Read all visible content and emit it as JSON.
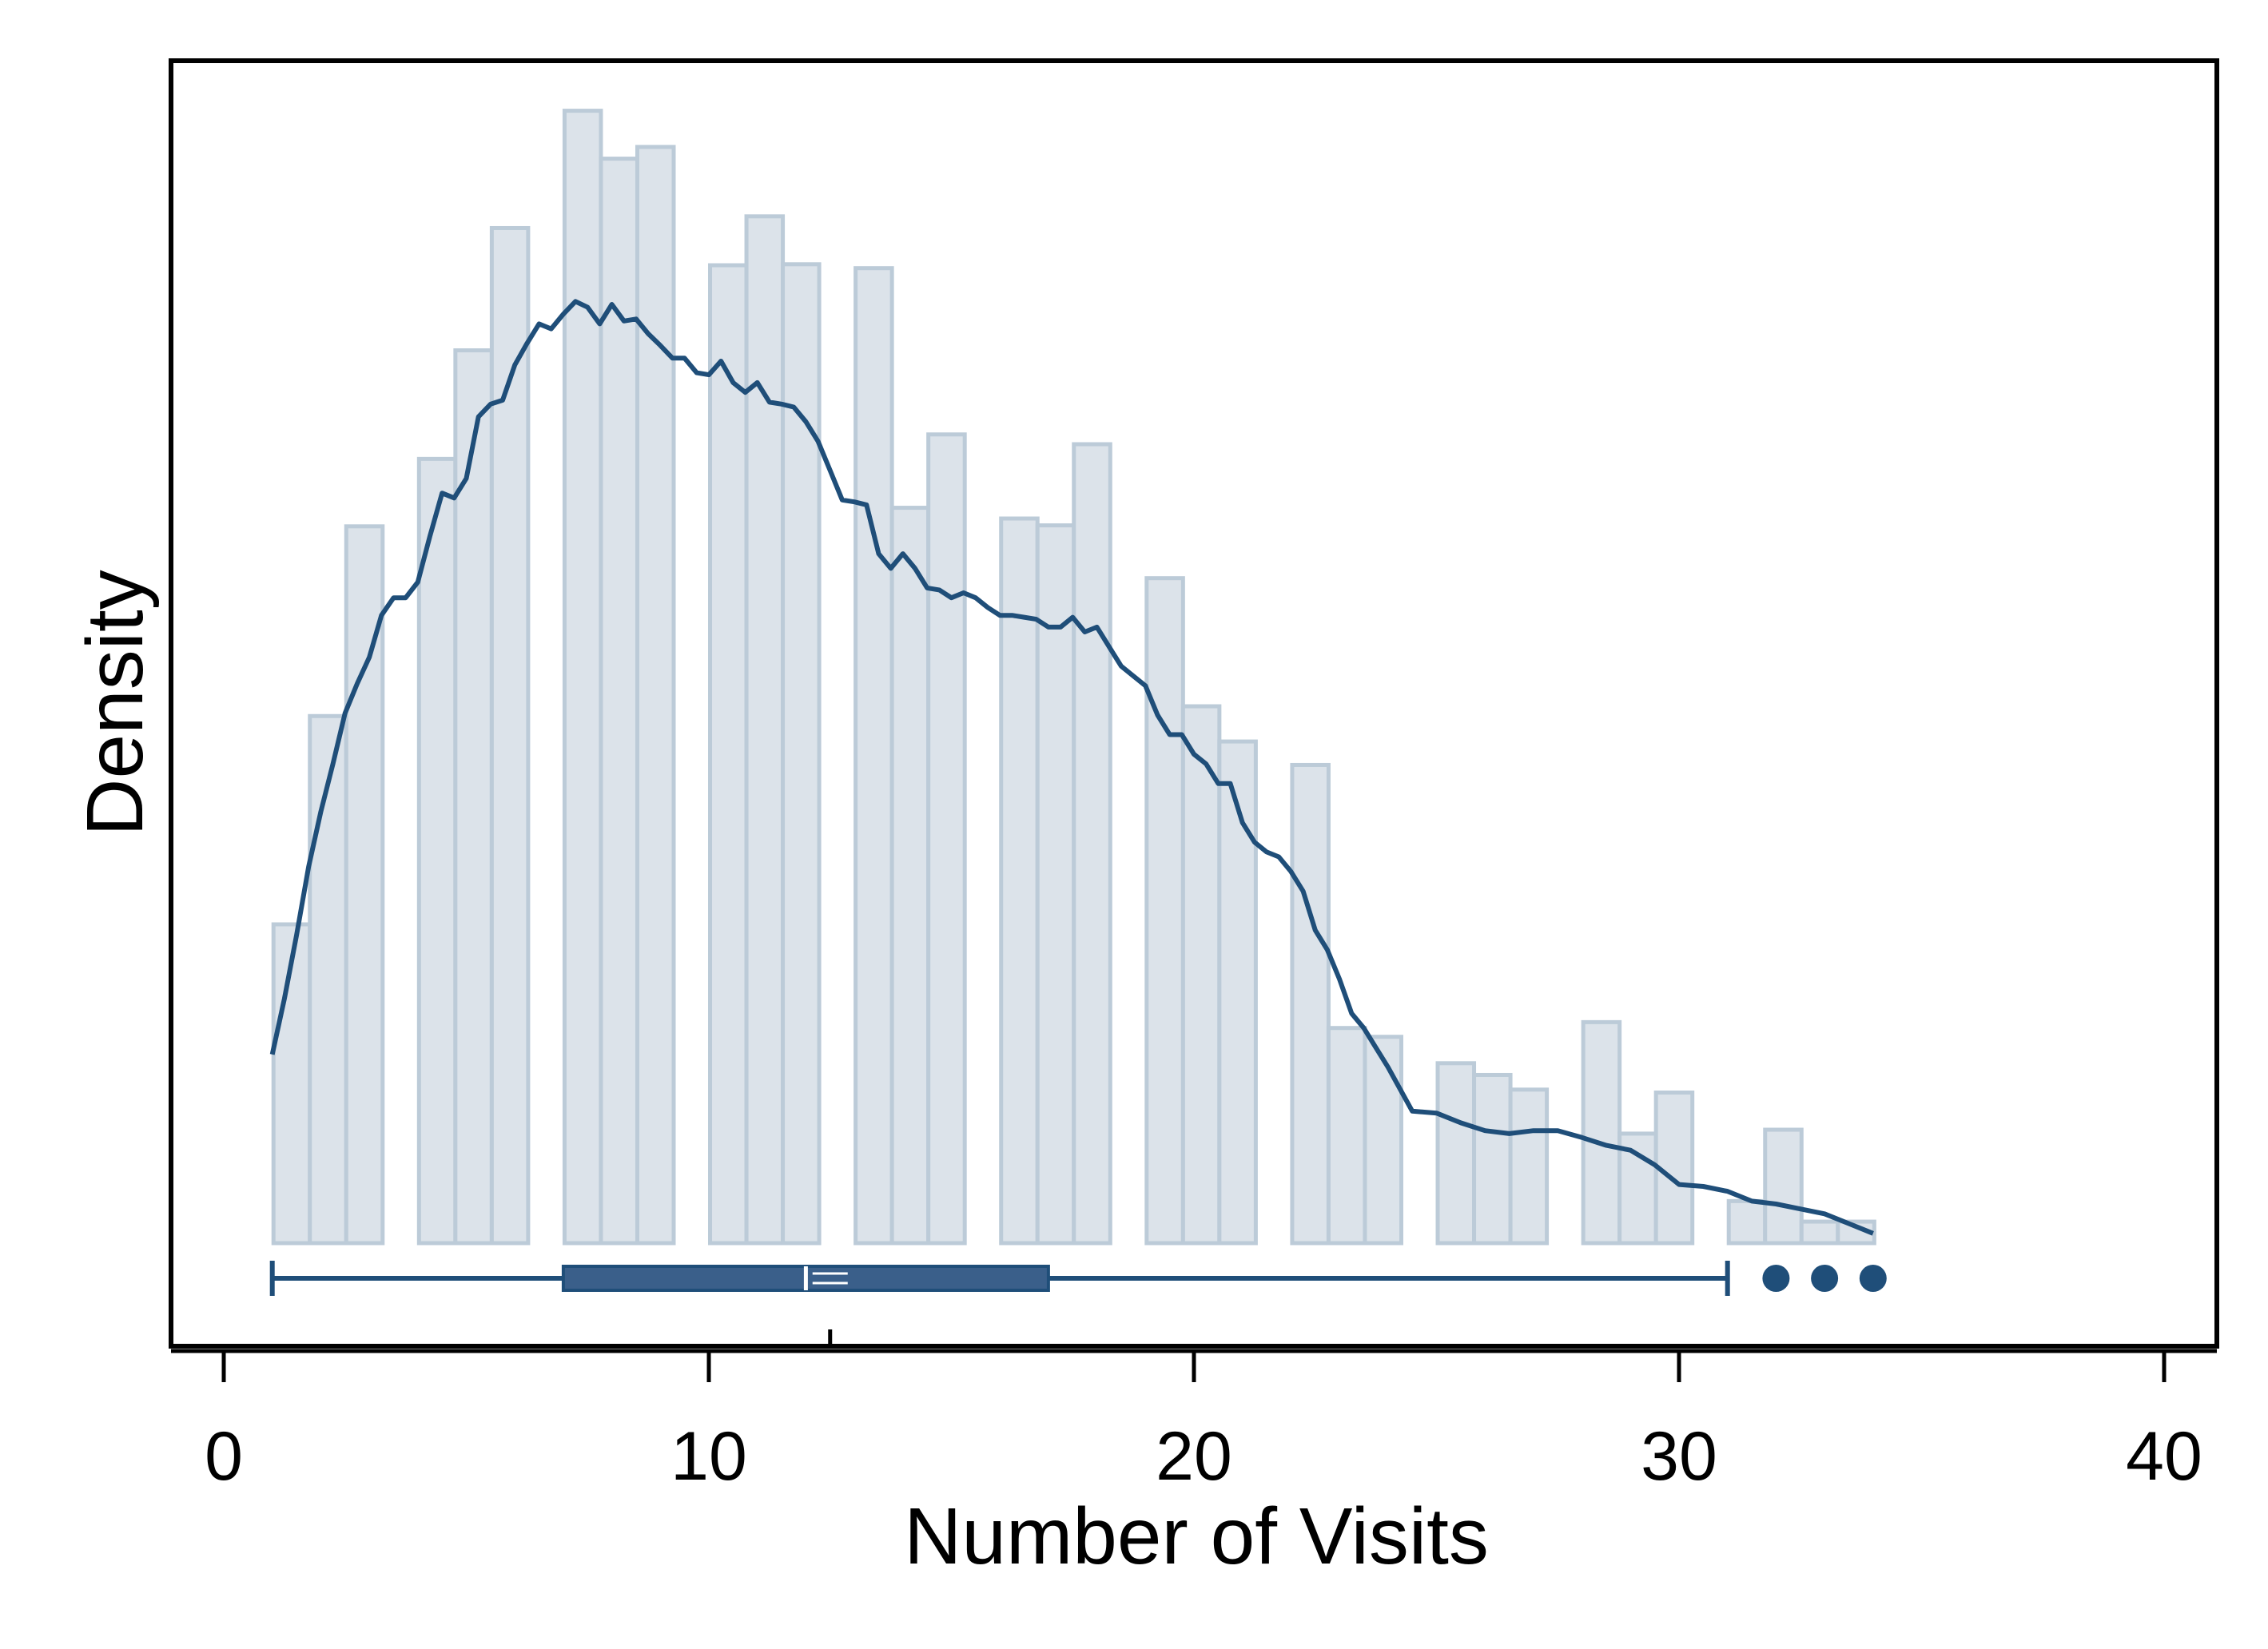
{
  "chart_data": {
    "type": "histogram",
    "xlabel": "Number of Visits",
    "ylabel": "Density",
    "xlim": [
      -1,
      41.2
    ],
    "xticks": [
      0,
      10,
      20,
      30,
      40
    ],
    "x_tick_labels": [
      "0",
      "10",
      "20",
      "30",
      "40"
    ],
    "y_ticks_shown": false,
    "grid": false,
    "colors": {
      "bar_fill": "#dce3ea",
      "bar_edge": "#bccbd8",
      "accent": "#1f4e79",
      "box_fill": "#3a5f8a"
    },
    "histogram": {
      "bin_width": 0.75,
      "bars": [
        {
          "x": 1.4,
          "density": 0.0326
        },
        {
          "x": 2.15,
          "density": 0.0539
        },
        {
          "x": 2.9,
          "density": 0.0733
        },
        {
          "x": 4.4,
          "density": 0.0802
        },
        {
          "x": 5.15,
          "density": 0.0913
        },
        {
          "x": 5.9,
          "density": 0.1038
        },
        {
          "x": 7.4,
          "density": 0.1158
        },
        {
          "x": 8.15,
          "density": 0.1109
        },
        {
          "x": 8.9,
          "density": 0.1121
        },
        {
          "x": 10.4,
          "density": 0.1
        },
        {
          "x": 11.15,
          "density": 0.105
        },
        {
          "x": 11.9,
          "density": 0.1001
        },
        {
          "x": 13.4,
          "density": 0.0997
        },
        {
          "x": 14.15,
          "density": 0.0752
        },
        {
          "x": 14.9,
          "density": 0.0827
        },
        {
          "x": 16.4,
          "density": 0.0741
        },
        {
          "x": 17.15,
          "density": 0.0734
        },
        {
          "x": 17.9,
          "density": 0.0817
        },
        {
          "x": 19.4,
          "density": 0.068
        },
        {
          "x": 20.15,
          "density": 0.0549
        },
        {
          "x": 20.9,
          "density": 0.0513
        },
        {
          "x": 22.4,
          "density": 0.0489
        },
        {
          "x": 23.15,
          "density": 0.022
        },
        {
          "x": 23.9,
          "density": 0.0211
        },
        {
          "x": 25.4,
          "density": 0.0184
        },
        {
          "x": 26.15,
          "density": 0.0172
        },
        {
          "x": 26.9,
          "density": 0.0157
        },
        {
          "x": 28.4,
          "density": 0.0226
        },
        {
          "x": 29.15,
          "density": 0.0112
        },
        {
          "x": 29.9,
          "density": 0.0154
        },
        {
          "x": 31.4,
          "density": 0.0043
        },
        {
          "x": 32.15,
          "density": 0.0116
        },
        {
          "x": 32.9,
          "density": 0.0022
        },
        {
          "x": 33.65,
          "density": 0.0022
        }
      ]
    },
    "density_curve": {
      "x": [
        1.0,
        1.25,
        1.5,
        1.75,
        2.0,
        2.25,
        2.5,
        2.75,
        3.0,
        3.25,
        3.5,
        3.75,
        4.0,
        4.25,
        4.5,
        4.75,
        5.0,
        5.25,
        5.5,
        5.75,
        6.0,
        6.25,
        6.5,
        6.75,
        7.0,
        7.25,
        7.5,
        7.75,
        8.0,
        8.25,
        8.5,
        8.75,
        9.0,
        9.25,
        9.5,
        9.75,
        10.0,
        10.25,
        10.5,
        10.75,
        11.0,
        11.25,
        11.5,
        11.75,
        12.0,
        12.25,
        12.5,
        12.75,
        13.0,
        13.25,
        13.5,
        13.75,
        14.0,
        14.25,
        14.5,
        14.75,
        15.0,
        15.25,
        15.5,
        15.75,
        16.0,
        16.25,
        16.5,
        16.75,
        17.0,
        17.25,
        17.5,
        17.75,
        18.0,
        18.25,
        18.5,
        18.75,
        19.0,
        19.25,
        19.5,
        19.75,
        20.0,
        20.25,
        20.5,
        20.75,
        21.0,
        21.25,
        21.5,
        21.75,
        22.0,
        22.25,
        22.5,
        22.75,
        23.0,
        23.25,
        23.5,
        23.75,
        24.0,
        24.5,
        25.0,
        25.5,
        26.0,
        26.5,
        27.0,
        27.5,
        28.0,
        28.5,
        29.0,
        29.5,
        30.0,
        30.5,
        31.0,
        31.5,
        32.0,
        32.5,
        33.0,
        33.5,
        34.0
      ],
      "density": [
        0.0193,
        0.025,
        0.0315,
        0.0385,
        0.0441,
        0.049,
        0.0542,
        0.0572,
        0.0599,
        0.0642,
        0.066,
        0.066,
        0.0676,
        0.0723,
        0.0767,
        0.0762,
        0.0782,
        0.0845,
        0.0858,
        0.0862,
        0.0898,
        0.092,
        0.094,
        0.0935,
        0.095,
        0.0963,
        0.0957,
        0.094,
        0.096,
        0.0943,
        0.0945,
        0.093,
        0.0918,
        0.0905,
        0.0905,
        0.089,
        0.0888,
        0.0902,
        0.088,
        0.087,
        0.088,
        0.086,
        0.0858,
        0.0855,
        0.084,
        0.082,
        0.079,
        0.076,
        0.0758,
        0.0755,
        0.0705,
        0.069,
        0.0705,
        0.069,
        0.067,
        0.0668,
        0.066,
        0.0665,
        0.066,
        0.065,
        0.0642,
        0.0642,
        0.064,
        0.0638,
        0.063,
        0.063,
        0.064,
        0.0625,
        0.063,
        0.061,
        0.059,
        0.058,
        0.057,
        0.054,
        0.052,
        0.052,
        0.05,
        0.049,
        0.047,
        0.047,
        0.043,
        0.041,
        0.04,
        0.0395,
        0.038,
        0.036,
        0.032,
        0.03,
        0.027,
        0.0235,
        0.022,
        0.02,
        0.018,
        0.0135,
        0.0133,
        0.0123,
        0.0115,
        0.0112,
        0.0115,
        0.0115,
        0.0108,
        0.01,
        0.0095,
        0.008,
        0.006,
        0.0058,
        0.0053,
        0.0043,
        0.004,
        0.0035,
        0.003,
        0.002,
        0.001
      ]
    },
    "boxplot": {
      "whisker_low": 1,
      "q1": 7,
      "median": 12,
      "mean": 12.5,
      "q3": 17,
      "whisker_high": 31,
      "outliers": [
        32,
        33,
        34
      ]
    }
  }
}
